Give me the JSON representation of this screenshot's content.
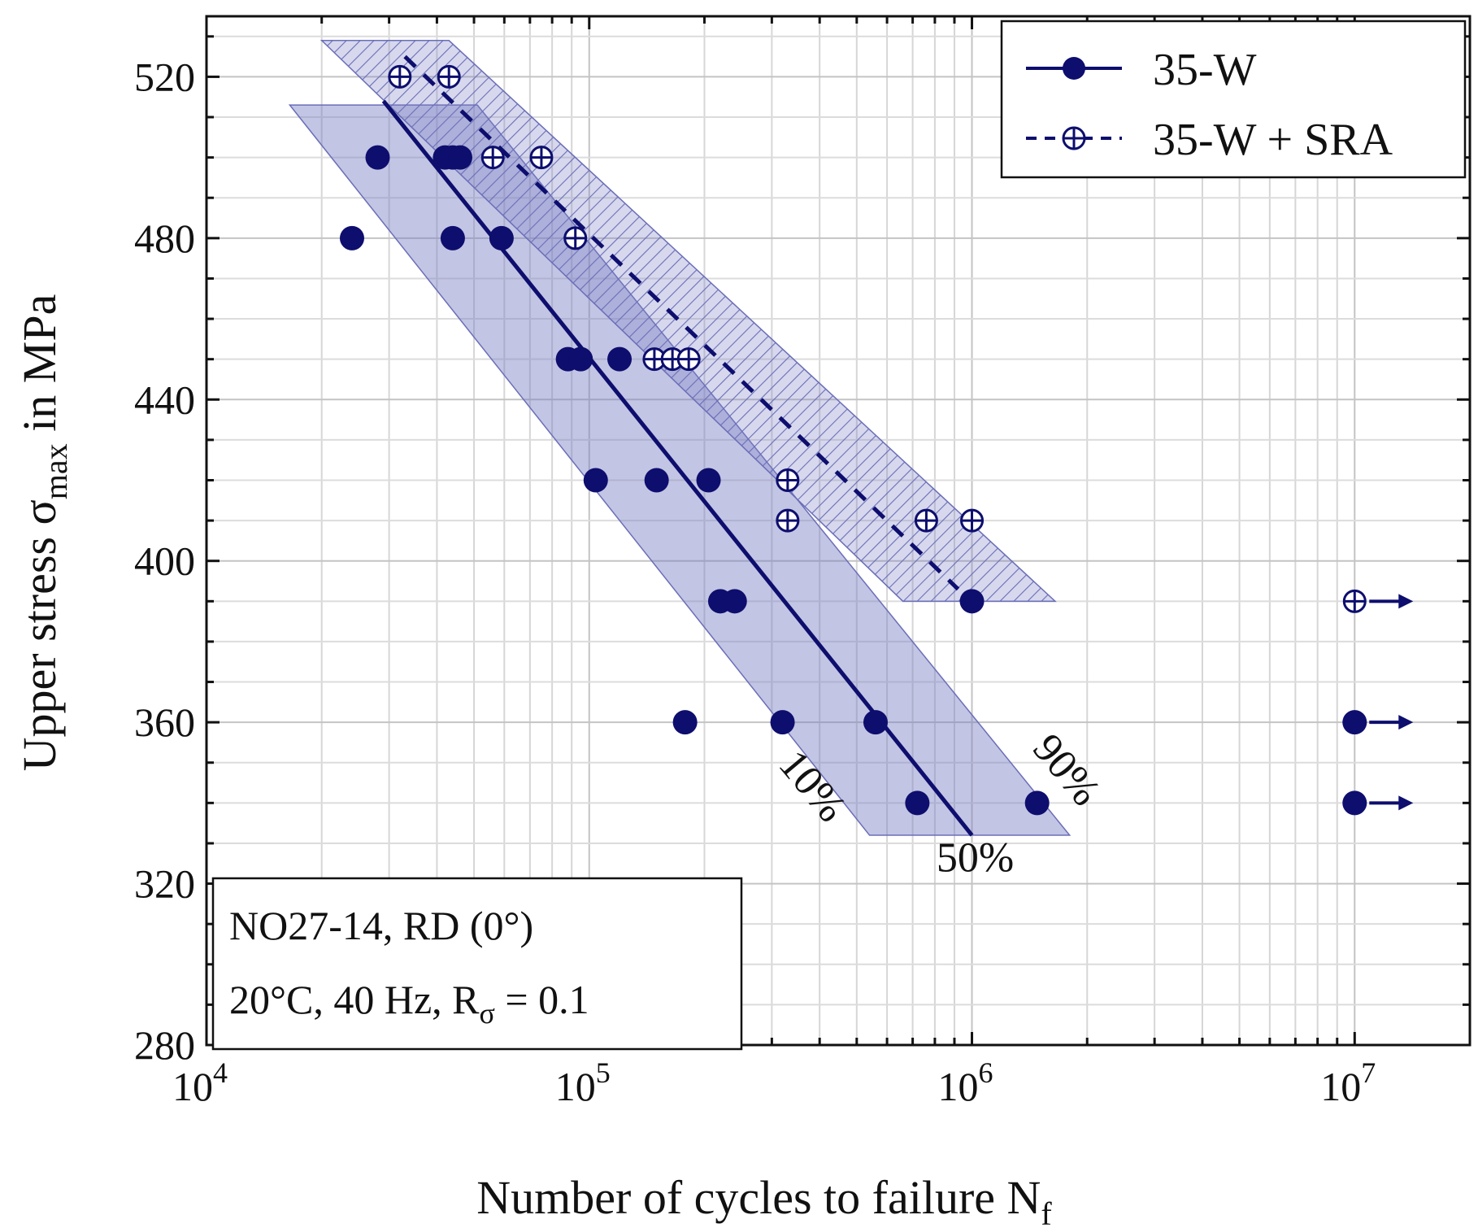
{
  "chart_data": {
    "type": "scatter",
    "x_scale": "log",
    "xlim": [
      10000,
      20000000
    ],
    "ylim": [
      280,
      535
    ],
    "xlabel": "Number of cycles to failure N",
    "xlabel_sub": "f",
    "ylabel_prefix": "Upper stress σ",
    "ylabel_sub": "max",
    "ylabel_suffix": " in MPa",
    "x_ticks": [
      {
        "value": 10000,
        "base": "10",
        "exp": "4"
      },
      {
        "value": 100000,
        "base": "10",
        "exp": "5"
      },
      {
        "value": 1000000,
        "base": "10",
        "exp": "6"
      },
      {
        "value": 10000000,
        "base": "10",
        "exp": "7"
      }
    ],
    "y_ticks": [
      280,
      320,
      360,
      400,
      440,
      480,
      520
    ],
    "grid": true,
    "legend_position": "top-right",
    "series": [
      {
        "name": "35-W",
        "marker": "filled-circle",
        "line": "solid",
        "color": "#0d0e6e",
        "points": [
          [
            24000,
            480
          ],
          [
            28000,
            500
          ],
          [
            42000,
            500
          ],
          [
            44000,
            500
          ],
          [
            46000,
            500
          ],
          [
            44000,
            480
          ],
          [
            59000,
            480
          ],
          [
            88000,
            450
          ],
          [
            95000,
            450
          ],
          [
            120000,
            450
          ],
          [
            104000,
            420
          ],
          [
            150000,
            420
          ],
          [
            205000,
            420
          ],
          [
            220000,
            390
          ],
          [
            240000,
            390
          ],
          [
            178000,
            360
          ],
          [
            320000,
            360
          ],
          [
            560000,
            360
          ],
          [
            720000,
            340
          ],
          [
            1480000,
            340
          ],
          [
            1000000,
            390
          ]
        ],
        "fit_line": [
          [
            29000,
            514
          ],
          [
            1000000,
            332
          ]
        ],
        "runouts": [
          [
            10000000,
            360
          ],
          [
            10000000,
            340
          ]
        ]
      },
      {
        "name": "35-W + SRA",
        "marker": "crossed-circle",
        "line": "dashed",
        "color": "#0d0e6e",
        "points": [
          [
            32000,
            520
          ],
          [
            43000,
            520
          ],
          [
            56000,
            500
          ],
          [
            75000,
            500
          ],
          [
            92000,
            480
          ],
          [
            148000,
            450
          ],
          [
            165000,
            450
          ],
          [
            182000,
            450
          ],
          [
            330000,
            420
          ],
          [
            330000,
            410
          ],
          [
            760000,
            410
          ],
          [
            1000000,
            410
          ]
        ],
        "fit_line": [
          [
            33000,
            525
          ],
          [
            920000,
            393
          ]
        ],
        "runouts": [
          [
            10000000,
            390
          ]
        ]
      }
    ],
    "scatter_bands": [
      {
        "series": "35-W",
        "style": "solid-fill",
        "color": "#7b7fc4",
        "polygon": [
          [
            16500,
            513
          ],
          [
            51000,
            513
          ],
          [
            1800000,
            332
          ],
          [
            540000,
            332
          ]
        ]
      },
      {
        "series": "35-W + SRA",
        "style": "hatched",
        "color": "#7b7fc4",
        "polygon": [
          [
            20000,
            529
          ],
          [
            43000,
            529
          ],
          [
            1650000,
            390
          ],
          [
            660000,
            390
          ]
        ]
      }
    ],
    "band_labels": [
      {
        "text": "10%",
        "x": 360000,
        "y": 342,
        "rotate": 50
      },
      {
        "text": "90%",
        "x": 1660000,
        "y": 346,
        "rotate": 50
      },
      {
        "text": "50%",
        "x": 1020000,
        "y": 323,
        "rotate": 0
      }
    ],
    "legend": [
      {
        "label": "35-W",
        "series": "35-W"
      },
      {
        "label": "35-W + SRA",
        "series": "35-W + SRA"
      }
    ],
    "info_box": {
      "line1": "NO27-14, RD (0°)",
      "line2_main": "20°C, 40 Hz, R",
      "line2_sub": "σ",
      "line2_end": " = 0.1"
    }
  }
}
